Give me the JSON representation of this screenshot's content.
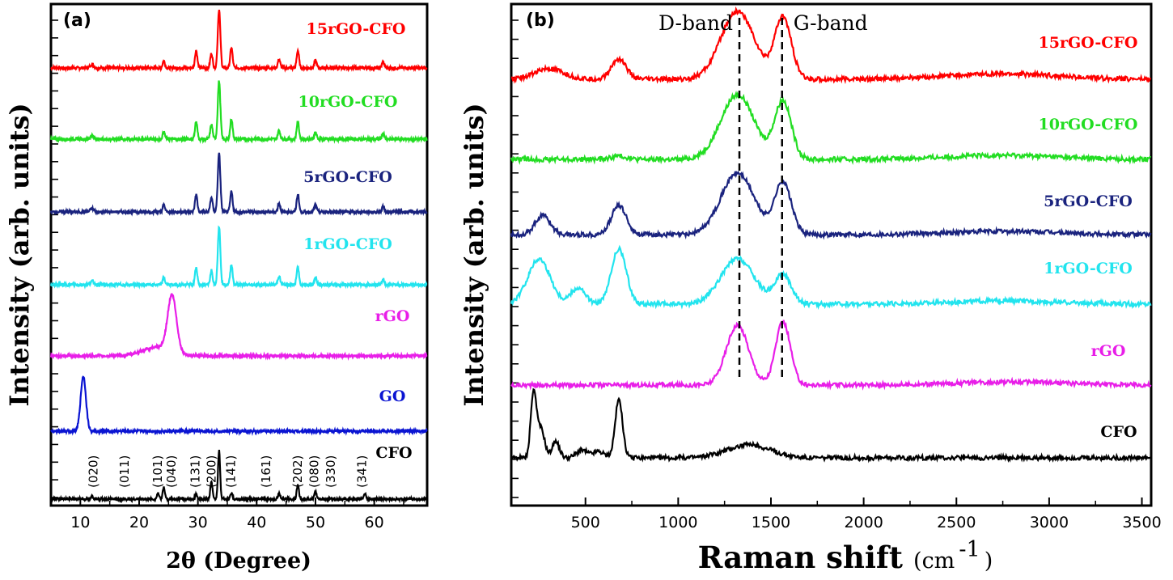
{
  "chart_data": [
    {
      "type": "line",
      "panel_label": "(a)",
      "xlabel": "2θ (Degree)",
      "ylabel": "Intensity (arb. units)",
      "xlim": [
        5,
        69
      ],
      "xticks": [
        "10",
        "20",
        "30",
        "40",
        "50",
        "60"
      ],
      "x_tick_values": [
        10,
        20,
        30,
        40,
        50,
        60
      ],
      "series": [
        {
          "name": "15rGO-CFO",
          "color": "#ff0000",
          "baseline": 0.93,
          "peaks": [
            [
              33.6,
              1.0,
              0.22
            ],
            [
              29.7,
              0.3,
              0.2
            ],
            [
              32.3,
              0.25,
              0.2
            ],
            [
              35.7,
              0.35,
              0.2
            ],
            [
              47,
              0.3,
              0.2
            ],
            [
              43.8,
              0.15,
              0.2
            ],
            [
              24.2,
              0.12,
              0.2
            ],
            [
              12,
              0.06,
              0.3
            ],
            [
              50,
              0.12,
              0.2
            ],
            [
              61.5,
              0.1,
              0.2
            ]
          ]
        },
        {
          "name": "10rGO-CFO",
          "color": "#22dd22",
          "baseline": 0.93,
          "peaks": [
            [
              33.6,
              1.0,
              0.22
            ],
            [
              29.7,
              0.3,
              0.2
            ],
            [
              32.3,
              0.25,
              0.2
            ],
            [
              35.7,
              0.35,
              0.2
            ],
            [
              47,
              0.3,
              0.2
            ],
            [
              43.8,
              0.15,
              0.2
            ],
            [
              24.2,
              0.12,
              0.2
            ],
            [
              12,
              0.06,
              0.3
            ],
            [
              50,
              0.12,
              0.2
            ],
            [
              61.5,
              0.1,
              0.2
            ]
          ]
        },
        {
          "name": "5rGO-CFO",
          "color": "#1a237e",
          "baseline": 0.93,
          "peaks": [
            [
              33.6,
              1.0,
              0.22
            ],
            [
              29.7,
              0.3,
              0.2
            ],
            [
              32.3,
              0.25,
              0.2
            ],
            [
              35.7,
              0.35,
              0.2
            ],
            [
              47,
              0.3,
              0.2
            ],
            [
              43.8,
              0.15,
              0.2
            ],
            [
              24.2,
              0.12,
              0.2
            ],
            [
              12,
              0.06,
              0.3
            ],
            [
              50,
              0.12,
              0.2
            ],
            [
              61.5,
              0.1,
              0.2
            ]
          ]
        },
        {
          "name": "1rGO-CFO",
          "color": "#22e4ee",
          "baseline": 0.93,
          "peaks": [
            [
              33.6,
              1.0,
              0.22
            ],
            [
              29.7,
              0.3,
              0.2
            ],
            [
              32.3,
              0.25,
              0.2
            ],
            [
              35.7,
              0.35,
              0.2
            ],
            [
              47,
              0.3,
              0.2
            ],
            [
              43.8,
              0.15,
              0.2
            ],
            [
              24.2,
              0.12,
              0.2
            ],
            [
              12,
              0.06,
              0.3
            ],
            [
              50,
              0.12,
              0.2
            ],
            [
              61.5,
              0.1,
              0.2
            ]
          ]
        },
        {
          "name": "rGO",
          "color": "#e81ee8",
          "baseline": 0.88,
          "peaks": [
            [
              25.6,
              1.0,
              0.75
            ],
            [
              23,
              0.15,
              2.5
            ]
          ]
        },
        {
          "name": "GO",
          "color": "#0a14d2",
          "baseline": 0.98,
          "peaks": [
            [
              10.5,
              1.0,
              0.45
            ]
          ]
        },
        {
          "name": "CFO",
          "color": "#000000",
          "baseline": 0.97,
          "peaks": [
            [
              33.6,
              1.0,
              0.18
            ],
            [
              32.3,
              0.35,
              0.18
            ],
            [
              29.7,
              0.1,
              0.18
            ],
            [
              24.2,
              0.25,
              0.18
            ],
            [
              23.2,
              0.12,
              0.18
            ],
            [
              35.7,
              0.12,
              0.18
            ],
            [
              47,
              0.3,
              0.18
            ],
            [
              43.8,
              0.12,
              0.18
            ],
            [
              50,
              0.15,
              0.18
            ],
            [
              58.4,
              0.12,
              0.18
            ],
            [
              12,
              0.05,
              0.2
            ]
          ]
        }
      ],
      "annotations": [
        {
          "text": "(020)",
          "x": 12.2
        },
        {
          "text": "(011)",
          "x": 17.5
        },
        {
          "text": "(101)",
          "x": 23.2
        },
        {
          "text": "(040)",
          "x": 25.5
        },
        {
          "text": "(131)",
          "x": 29.6
        },
        {
          "text": "(200)",
          "x": 32.3
        },
        {
          "text": "(141)",
          "x": 35.6
        },
        {
          "text": "(161)",
          "x": 41.6
        },
        {
          "text": "(202)",
          "x": 47.0
        },
        {
          "text": "(080)",
          "x": 49.8
        },
        {
          "text": "(330)",
          "x": 52.6
        },
        {
          "text": "(341)",
          "x": 57.9
        }
      ]
    },
    {
      "type": "line",
      "panel_label": "(b)",
      "xlabel": "Raman shift",
      "xunit_base": "(cm",
      "xunit_exp": "-1",
      "xunit_close": ")",
      "ylabel": "Intensity (arb. units)",
      "xlim": [
        100,
        3550
      ],
      "xticks": [
        "500",
        "1000",
        "1500",
        "2000",
        "2500",
        "3000",
        "3500"
      ],
      "x_tick_values": [
        500,
        1000,
        1500,
        2000,
        2500,
        3000,
        3500
      ],
      "d_band": {
        "label": "D-band",
        "x": 1330
      },
      "g_band": {
        "label": "G-band",
        "x": 1560
      },
      "series": [
        {
          "name": "15rGO-CFO",
          "color": "#ff0000",
          "peaks": [
            [
              1320,
              1.0,
              90
            ],
            [
              1565,
              0.9,
              45
            ],
            [
              680,
              0.3,
              40
            ],
            [
              300,
              0.15,
              80
            ],
            [
              2750,
              0.08,
              300
            ]
          ]
        },
        {
          "name": "10rGO-CFO",
          "color": "#22dd22",
          "peaks": [
            [
              1320,
              0.95,
              90
            ],
            [
              1565,
              0.85,
              45
            ],
            [
              680,
              0.05,
              40
            ],
            [
              2750,
              0.06,
              300
            ]
          ]
        },
        {
          "name": "5rGO-CFO",
          "color": "#1a237e",
          "peaks": [
            [
              1320,
              0.95,
              90
            ],
            [
              1565,
              0.8,
              45
            ],
            [
              680,
              0.45,
              40
            ],
            [
              270,
              0.3,
              40
            ],
            [
              2750,
              0.05,
              300
            ]
          ]
        },
        {
          "name": "1rGO-CFO",
          "color": "#22e4ee",
          "peaks": [
            [
              1320,
              0.7,
              90
            ],
            [
              1565,
              0.45,
              45
            ],
            [
              680,
              0.85,
              40
            ],
            [
              250,
              0.7,
              60
            ],
            [
              460,
              0.25,
              40
            ],
            [
              2750,
              0.05,
              300
            ]
          ]
        },
        {
          "name": "rGO",
          "color": "#e81ee8",
          "peaks": [
            [
              1320,
              0.95,
              60
            ],
            [
              1565,
              1.0,
              40
            ],
            [
              2800,
              0.05,
              300
            ]
          ]
        },
        {
          "name": "CFO",
          "color": "#000000",
          "peaks": [
            [
              220,
              1.0,
              15
            ],
            [
              260,
              0.45,
              20
            ],
            [
              340,
              0.25,
              20
            ],
            [
              480,
              0.12,
              30
            ],
            [
              570,
              0.1,
              30
            ],
            [
              680,
              0.9,
              20
            ],
            [
              1380,
              0.2,
              120
            ]
          ]
        }
      ]
    }
  ]
}
